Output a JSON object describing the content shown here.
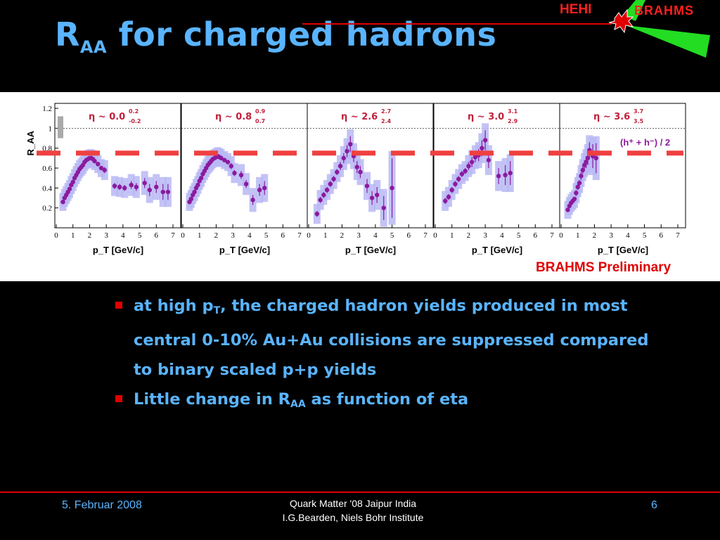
{
  "header": {
    "title_main": "R",
    "title_sub": "AA",
    "title_rest": " for charged hadrons",
    "logo_left": "HEHI",
    "logo_right": "BRAHMS"
  },
  "figure": {
    "preliminary_label": "BRAHMS Preliminary",
    "legend_label": "(h⁺ + h⁻) / 2"
  },
  "bullets": [
    {
      "pre": "at high p",
      "sub": "T",
      "post": ", the charged hadron yields produced in most central 0-10% Au+Au collisions are suppressed compared to binary scaled p+p yields"
    },
    {
      "pre": "Little change  in R",
      "sub": "AA",
      "post": " as function of  eta"
    }
  ],
  "footer": {
    "date": "5. Februar 2008",
    "line1": "Quark Matter '08 Jaipur India",
    "line2": "I.G.Bearden, Niels Bohr Institute",
    "page": "6"
  },
  "colors": {
    "accent": "#5ab4ff",
    "rule": "#e00000",
    "points": "#8b1a9e",
    "band": "#b8b8f4",
    "dashed": "#f04040"
  },
  "chart_data": {
    "type": "scatter",
    "ylabel": "R_AA",
    "xlabel": "p_T [GeV/c]",
    "xlim": [
      0,
      7
    ],
    "ylim": [
      0,
      1.25
    ],
    "xticks": [
      0,
      1,
      2,
      3,
      4,
      5,
      6,
      7
    ],
    "yticks": [
      0.2,
      0.4,
      0.6,
      0.8,
      1,
      1.2
    ],
    "ytick_labels": [
      "0.2",
      "0.4",
      "0.6",
      "0.8",
      "1",
      "1.2"
    ],
    "reference_line": 1.0,
    "dashed_level": 0.75,
    "panels": [
      {
        "eta_label": "η ~ 0.0",
        "sup": "0.2",
        "sub": "-0.2",
        "x": [
          0.4,
          0.5,
          0.6,
          0.7,
          0.8,
          0.9,
          1.0,
          1.1,
          1.2,
          1.3,
          1.4,
          1.5,
          1.6,
          1.7,
          1.8,
          1.9,
          2.0,
          2.1,
          2.2,
          2.3,
          2.5,
          2.7,
          2.9,
          3.5,
          3.8,
          4.1,
          4.5,
          4.8,
          5.3,
          5.6,
          6.0,
          6.4,
          6.7
        ],
        "y": [
          0.26,
          0.3,
          0.33,
          0.36,
          0.39,
          0.43,
          0.46,
          0.5,
          0.53,
          0.56,
          0.59,
          0.61,
          0.63,
          0.66,
          0.68,
          0.69,
          0.7,
          0.7,
          0.69,
          0.67,
          0.64,
          0.6,
          0.58,
          0.42,
          0.41,
          0.4,
          0.43,
          0.41,
          0.45,
          0.38,
          0.41,
          0.36,
          0.36
        ],
        "err": [
          0.02,
          0.02,
          0.02,
          0.02,
          0.02,
          0.02,
          0.02,
          0.02,
          0.02,
          0.02,
          0.02,
          0.02,
          0.02,
          0.02,
          0.02,
          0.02,
          0.02,
          0.02,
          0.02,
          0.02,
          0.02,
          0.02,
          0.03,
          0.03,
          0.03,
          0.03,
          0.04,
          0.04,
          0.05,
          0.06,
          0.06,
          0.08,
          0.08
        ]
      },
      {
        "eta_label": "η ~ 0.8",
        "sup": "0.9",
        "sub": "0.7",
        "x": [
          0.4,
          0.5,
          0.6,
          0.7,
          0.8,
          0.9,
          1.0,
          1.1,
          1.2,
          1.3,
          1.4,
          1.5,
          1.6,
          1.7,
          1.8,
          1.9,
          2.0,
          2.1,
          2.2,
          2.3,
          2.5,
          2.7,
          2.9,
          3.1,
          3.5,
          3.8,
          4.2,
          4.6,
          4.9
        ],
        "y": [
          0.26,
          0.29,
          0.33,
          0.36,
          0.4,
          0.43,
          0.47,
          0.5,
          0.54,
          0.57,
          0.6,
          0.63,
          0.65,
          0.67,
          0.69,
          0.7,
          0.71,
          0.72,
          0.71,
          0.7,
          0.68,
          0.66,
          0.62,
          0.55,
          0.53,
          0.44,
          0.28,
          0.38,
          0.4
        ],
        "err": [
          0.02,
          0.02,
          0.02,
          0.02,
          0.02,
          0.02,
          0.02,
          0.02,
          0.02,
          0.02,
          0.02,
          0.02,
          0.02,
          0.02,
          0.02,
          0.02,
          0.02,
          0.02,
          0.02,
          0.02,
          0.02,
          0.02,
          0.03,
          0.03,
          0.04,
          0.04,
          0.05,
          0.06,
          0.07
        ]
      },
      {
        "eta_label": "η ~ 2.6",
        "sup": "2.7",
        "sub": "2.4",
        "x": [
          0.5,
          0.7,
          0.9,
          1.1,
          1.3,
          1.5,
          1.7,
          1.9,
          2.1,
          2.3,
          2.5,
          2.7,
          2.9,
          3.1,
          3.5,
          3.8,
          4.1,
          4.5,
          5.0
        ],
        "y": [
          0.14,
          0.28,
          0.33,
          0.38,
          0.44,
          0.49,
          0.56,
          0.62,
          0.7,
          0.77,
          0.84,
          0.72,
          0.61,
          0.56,
          0.42,
          0.3,
          0.33,
          0.2,
          0.4
        ],
        "err": [
          0.03,
          0.03,
          0.03,
          0.03,
          0.03,
          0.03,
          0.03,
          0.04,
          0.05,
          0.06,
          0.08,
          0.06,
          0.06,
          0.06,
          0.07,
          0.07,
          0.08,
          0.12,
          0.3
        ]
      },
      {
        "eta_label": "η ~ 3.0",
        "sup": "3.1",
        "sub": "2.9",
        "x": [
          0.6,
          0.8,
          1.0,
          1.2,
          1.4,
          1.6,
          1.8,
          2.0,
          2.2,
          2.4,
          2.6,
          2.8,
          3.0,
          3.2,
          3.8,
          4.2,
          4.5
        ],
        "y": [
          0.27,
          0.31,
          0.38,
          0.44,
          0.49,
          0.54,
          0.57,
          0.62,
          0.66,
          0.71,
          0.73,
          0.8,
          0.88,
          0.68,
          0.52,
          0.53,
          0.55
        ],
        "err": [
          0.03,
          0.03,
          0.03,
          0.03,
          0.03,
          0.03,
          0.03,
          0.04,
          0.05,
          0.05,
          0.06,
          0.08,
          0.1,
          0.08,
          0.08,
          0.1,
          0.12
        ]
      },
      {
        "eta_label": "η ~ 3.6",
        "sup": "3.7",
        "sub": "3.5",
        "x": [
          0.4,
          0.5,
          0.6,
          0.7,
          0.8,
          0.9,
          1.0,
          1.1,
          1.2,
          1.3,
          1.4,
          1.5,
          1.6,
          1.7,
          1.9,
          2.1
        ],
        "y": [
          0.18,
          0.22,
          0.25,
          0.27,
          0.29,
          0.35,
          0.41,
          0.45,
          0.52,
          0.58,
          0.63,
          0.66,
          0.7,
          0.78,
          0.72,
          0.7
        ],
        "err": [
          0.02,
          0.02,
          0.02,
          0.02,
          0.02,
          0.03,
          0.03,
          0.03,
          0.04,
          0.04,
          0.05,
          0.06,
          0.07,
          0.08,
          0.12,
          0.15
        ]
      }
    ]
  }
}
